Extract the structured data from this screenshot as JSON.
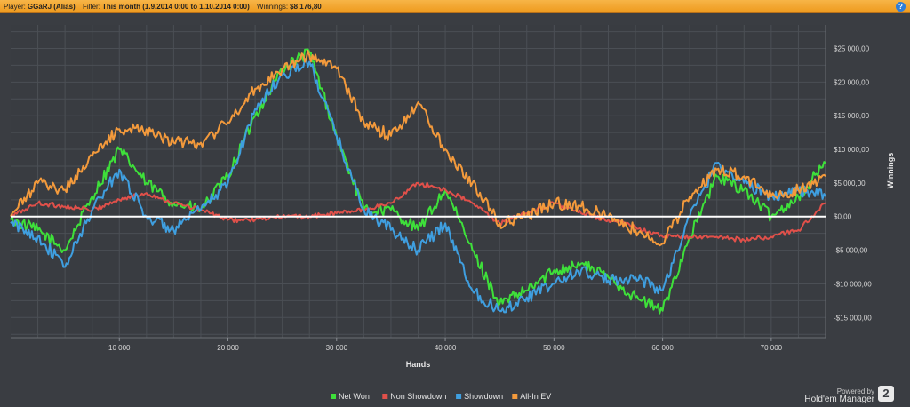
{
  "header": {
    "player_label": "Player:",
    "player_value": "GGaRJ (Alias)",
    "filter_label": "Filter:",
    "filter_value": "This month (1.9.2014 0:00 to 1.10.2014 0:00)",
    "winnings_label": "Winnings:",
    "winnings_value": "$8 176,80",
    "help_label": "?"
  },
  "brand": {
    "powered_by": "Powered by",
    "name": "Hold'em Manager",
    "badge": "2"
  },
  "colors": {
    "net_won": "#3ee03a",
    "non_showdown": "#e0504a",
    "showdown": "#3f9fe0",
    "all_in_ev": "#f39a3c"
  },
  "chart_data": {
    "type": "line",
    "title": "",
    "xlabel": "Hands",
    "ylabel": "Winnings",
    "xlim": [
      0,
      75000
    ],
    "ylim": [
      -18000,
      28500
    ],
    "x_ticks": [
      10000,
      20000,
      30000,
      40000,
      50000,
      60000,
      70000
    ],
    "x_tick_labels": [
      "10 000",
      "20 000",
      "30 000",
      "40 000",
      "50 000",
      "60 000",
      "70 000"
    ],
    "y_ticks": [
      -15000,
      -10000,
      -5000,
      0,
      5000,
      10000,
      15000,
      20000,
      25000
    ],
    "y_tick_labels": [
      "-$15 000,00",
      "-$10 000,00",
      "-$5 000,00",
      "$0,00",
      "$5 000,00",
      "$10 000,00",
      "$15 000,00",
      "$20 000,00",
      "$25 000,00"
    ],
    "grid": true,
    "legend": "bottom-center",
    "x": [
      0,
      2500,
      5000,
      7500,
      10000,
      12500,
      15000,
      17500,
      20000,
      22500,
      25000,
      27500,
      30000,
      32500,
      35000,
      37500,
      40000,
      42500,
      45000,
      47500,
      50000,
      52500,
      55000,
      57500,
      60000,
      62500,
      65000,
      67500,
      70000,
      72500,
      75000
    ],
    "series": [
      {
        "name": "Net Won",
        "color": "#3ee03a",
        "values": [
          -500,
          -2000,
          -5000,
          3000,
          10000,
          5000,
          2000,
          1000,
          6000,
          15000,
          22000,
          24500,
          12000,
          1000,
          1000,
          -2000,
          4000,
          -5000,
          -13000,
          -11000,
          -8000,
          -7000,
          -9000,
          -12000,
          -14000,
          -3000,
          6000,
          4000,
          0,
          3000,
          8000
        ]
      },
      {
        "name": "Non Showdown",
        "color": "#e0504a",
        "values": [
          0,
          2000,
          1500,
          1000,
          2500,
          3500,
          2000,
          1000,
          -500,
          -500,
          0,
          0,
          500,
          1000,
          2000,
          5000,
          4000,
          2000,
          -1000,
          500,
          2000,
          500,
          -500,
          -1500,
          -3000,
          -3000,
          -3000,
          -3500,
          -3000,
          -2000,
          2000
        ]
      },
      {
        "name": "Showdown",
        "color": "#3f9fe0",
        "values": [
          -1000,
          -3000,
          -7500,
          1000,
          7000,
          0,
          -2000,
          1000,
          5000,
          16000,
          21000,
          23000,
          12000,
          1000,
          -2000,
          -5000,
          -1000,
          -11000,
          -14000,
          -12000,
          -10000,
          -8000,
          -9500,
          -9000,
          -11000,
          0,
          8000,
          5000,
          3000,
          4000,
          3000
        ]
      },
      {
        "name": "All-In EV",
        "color": "#f39a3c",
        "values": [
          0,
          5000,
          4000,
          9000,
          13000,
          13000,
          11000,
          11000,
          14000,
          19000,
          22000,
          24000,
          22000,
          14000,
          12000,
          17000,
          10000,
          5000,
          -1000,
          0,
          2000,
          1500,
          0,
          -2000,
          -4000,
          3000,
          7000,
          6000,
          3000,
          4000,
          6000
        ]
      }
    ]
  }
}
